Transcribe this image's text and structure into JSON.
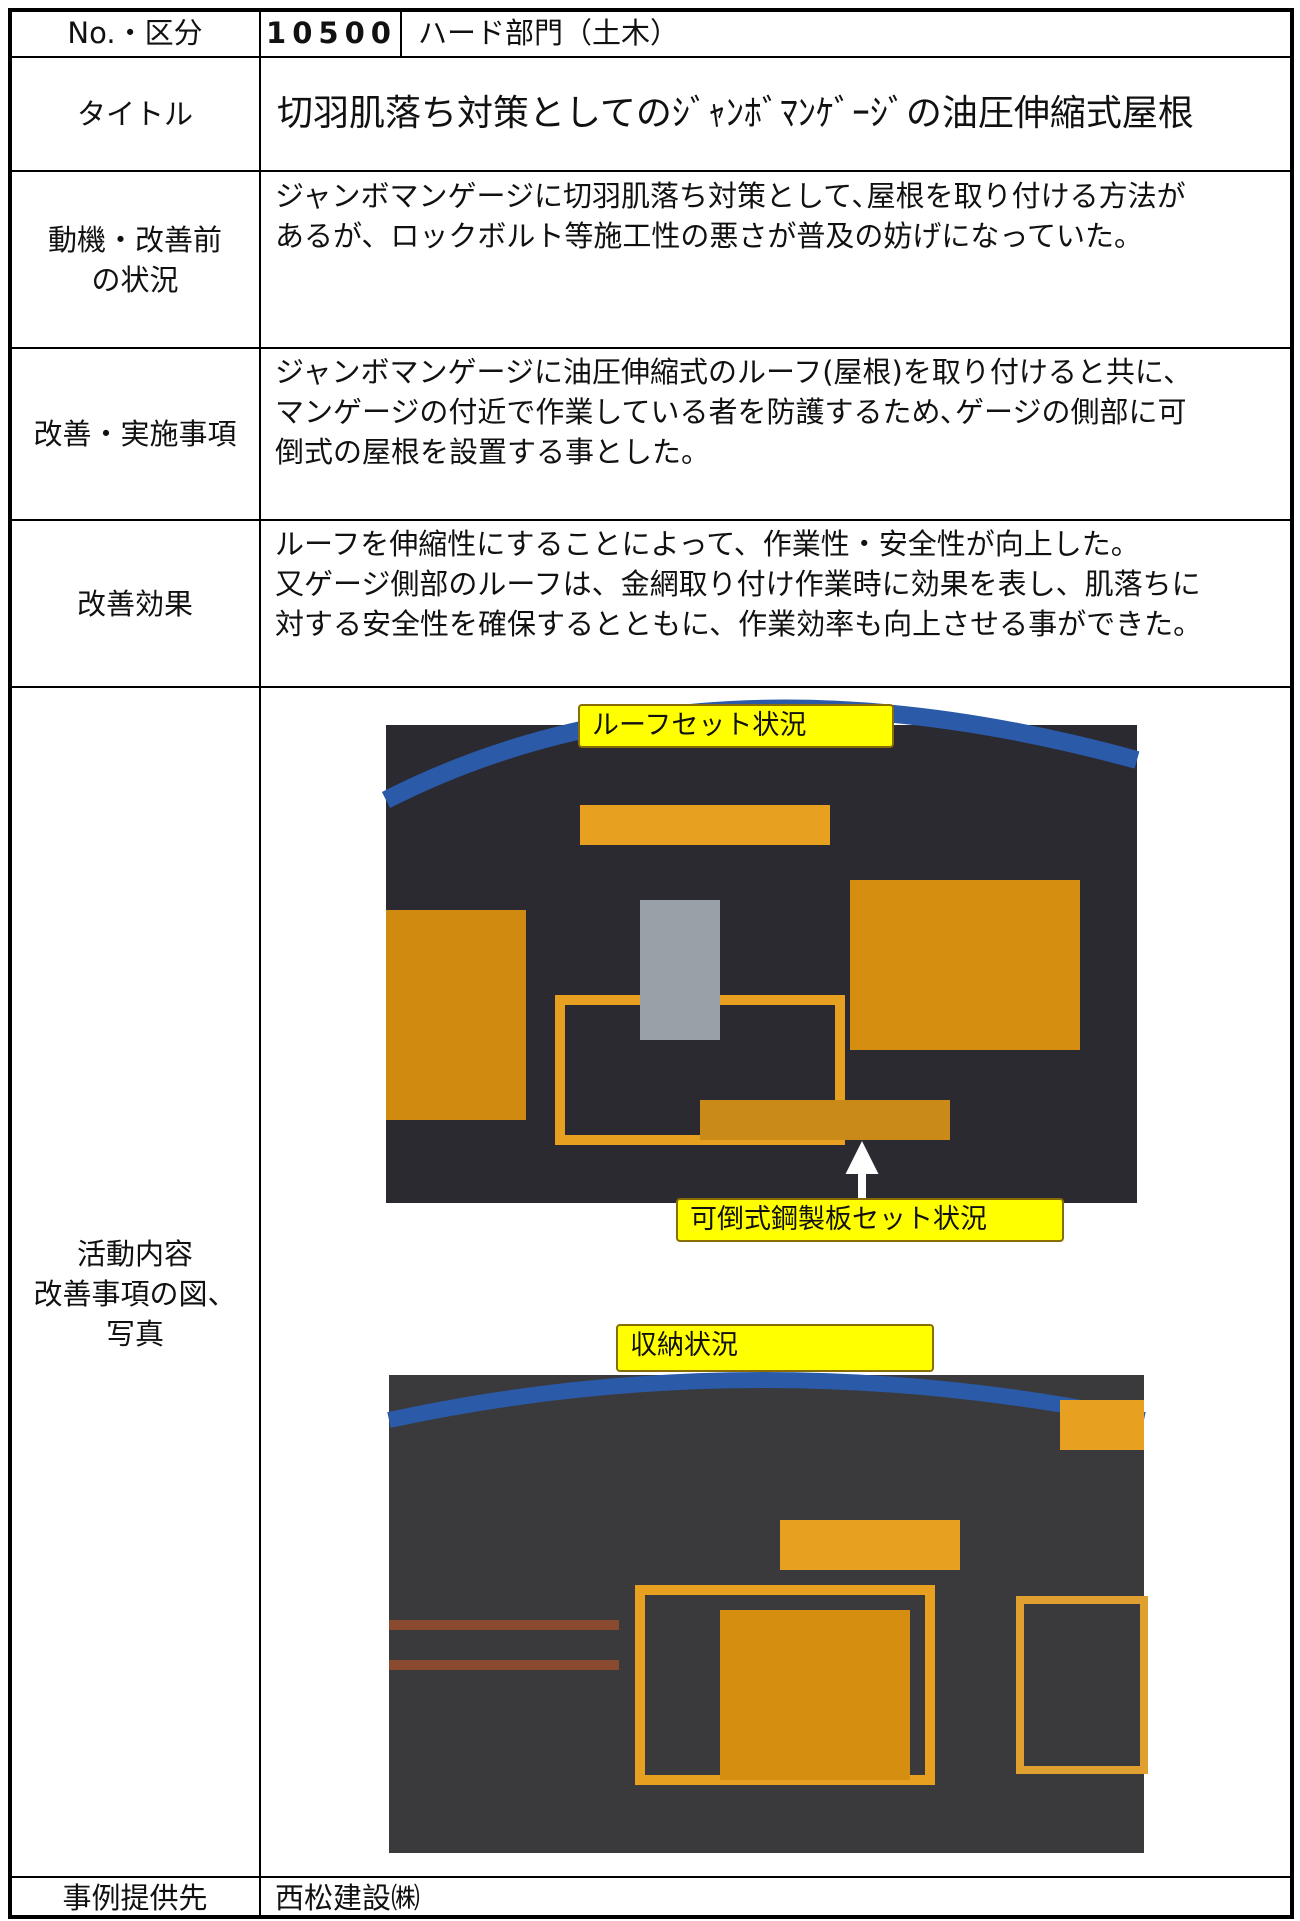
{
  "number_category": {
    "label": "No.・区分",
    "number": "10500",
    "category": "ハード部門（土木）"
  },
  "title": {
    "label": "タイトル",
    "text": "切羽肌落ち対策としてのｼﾞｬﾝﾎﾞﾏﾝｹﾞｰｼﾞの油圧伸縮式屋根"
  },
  "motivation": {
    "label_lines": [
      "動機・改善前",
      "の状況"
    ],
    "lines": [
      "ジャンボマンゲージに切羽肌落ち対策として､屋根を取り付ける方法が",
      "あるが、ロックボルト等施工性の悪さが普及の妨げになっていた。"
    ]
  },
  "improvement": {
    "label": "改善・実施事項",
    "lines": [
      "ジャンボマンゲージに油圧伸縮式のルーフ(屋根)を取り付けると共に､",
      "マンゲージの付近で作業している者を防護するため､ゲージの側部に可",
      "倒式の屋根を設置する事とした。"
    ]
  },
  "effect": {
    "label": "改善効果",
    "lines": [
      "ルーフを伸縮性にすることによって、作業性・安全性が向上した。",
      "又ゲージ側部のルーフは、金網取り付け作業時に効果を表し、肌落ちに",
      "対する安全性を確保するとともに、作業効率も向上させる事ができた。"
    ]
  },
  "activity": {
    "label_lines": [
      "活動内容",
      "改善事項の図、",
      "写真"
    ],
    "photo_labels": [
      "ルーフセット状況",
      "可倒式鋼製板セット状況",
      "収納状況"
    ]
  },
  "provider": {
    "label": "事例提供先",
    "text": "西松建設㈱"
  }
}
